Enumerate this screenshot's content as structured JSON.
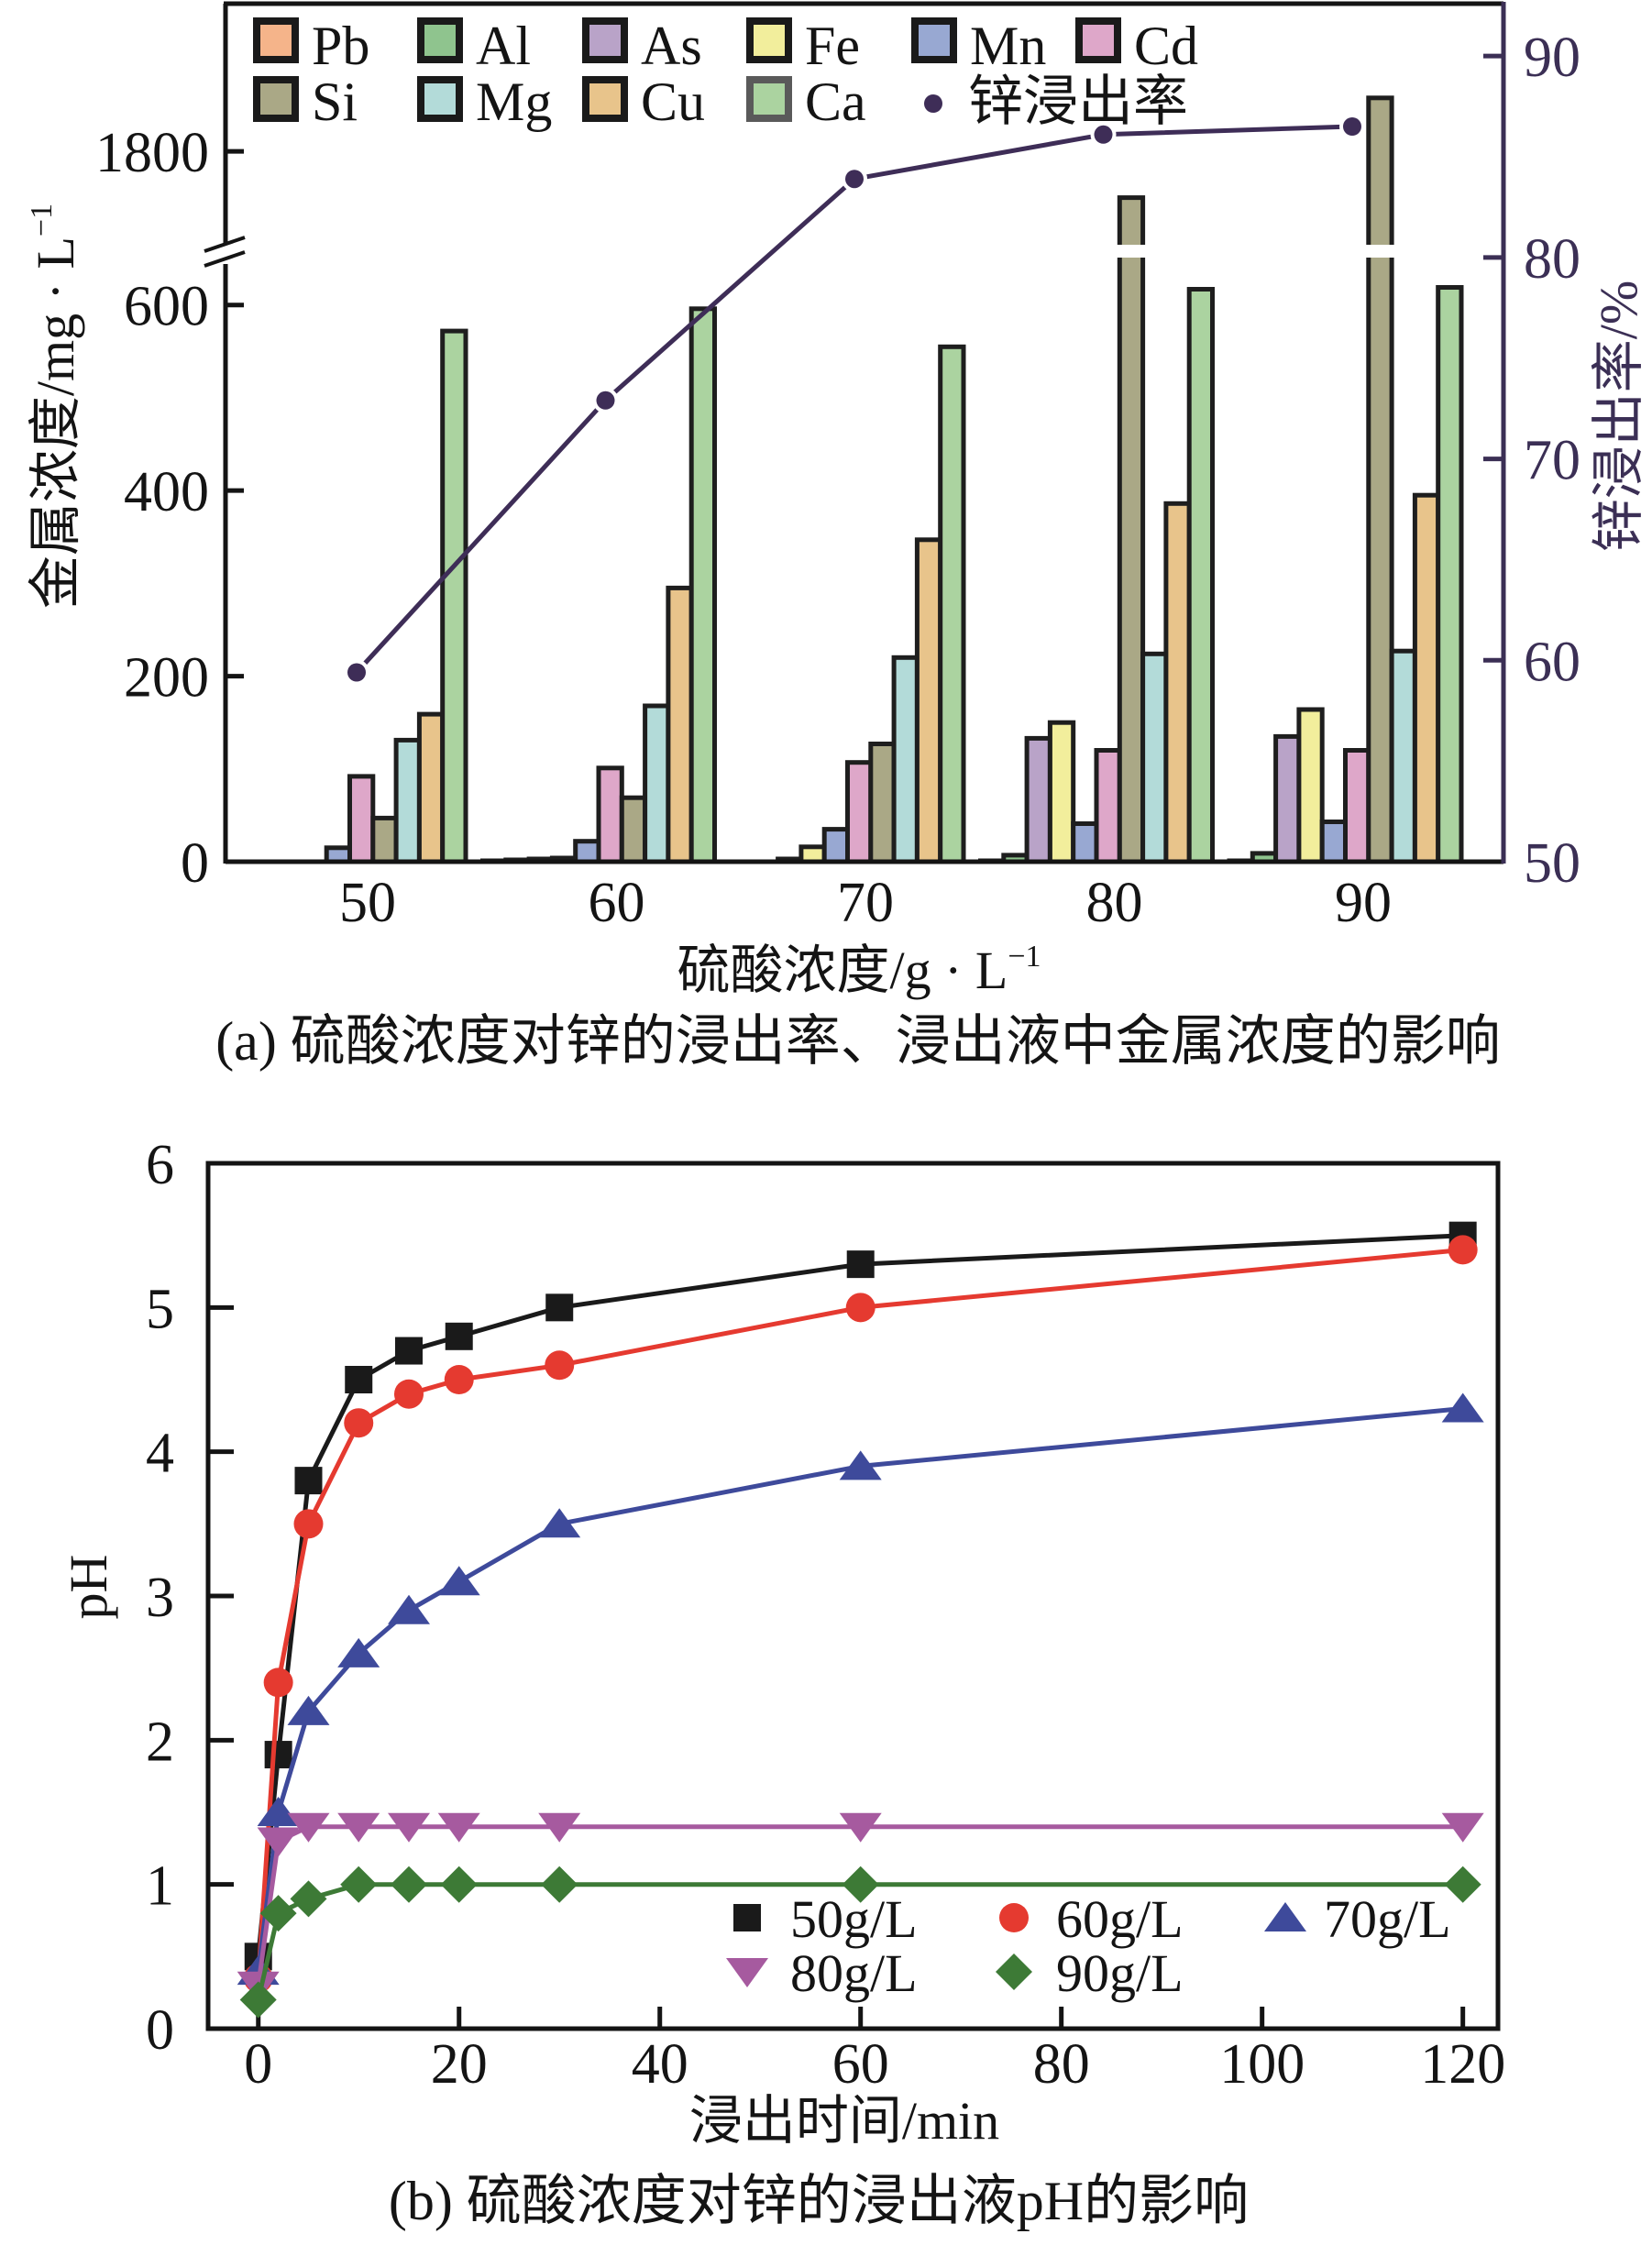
{
  "chart_data": [
    {
      "type": "bar",
      "title": "(a) 硫酸浓度对锌的浸出率、浸出液中金属浓度的影响",
      "xlabel": "硫酸浓度/g · L",
      "xlabel_superscript": "−1",
      "ylabel": "金属浓度/mg · L",
      "ylabel_superscript": "−1",
      "y2label": "锌浸出率/%",
      "categories": [
        "50",
        "60",
        "70",
        "80",
        "90"
      ],
      "ylim": [
        0,
        1960
      ],
      "y_axis_break": [
        660,
        1690
      ],
      "yticks": [
        0,
        200,
        400,
        600,
        1800
      ],
      "y2lim": [
        50,
        92.6
      ],
      "y2ticks": [
        50,
        60,
        70,
        80,
        90
      ],
      "grid": false,
      "legend_position": "top-left",
      "series": [
        {
          "name": "Pb",
          "color": "#f5b48a",
          "values": [
            0,
            1,
            0,
            1,
            1
          ]
        },
        {
          "name": "Al",
          "color": "#8fc48e",
          "values": [
            0,
            2,
            0,
            7,
            9
          ]
        },
        {
          "name": "As",
          "color": "#b9a3c8",
          "values": [
            0,
            3,
            3,
            133,
            135
          ]
        },
        {
          "name": "Fe",
          "color": "#f2ee9c",
          "values": [
            0,
            4,
            16,
            150,
            164
          ]
        },
        {
          "name": "Mn",
          "color": "#98a8d2",
          "values": [
            15,
            22,
            35,
            41,
            43
          ]
        },
        {
          "name": "Cd",
          "color": "#dea7c9",
          "values": [
            92,
            101,
            107,
            120,
            120
          ]
        },
        {
          "name": "Si",
          "color": "#aaa886",
          "values": [
            47,
            69,
            127,
            1750,
            1858
          ]
        },
        {
          "name": "Mg",
          "color": "#b3dbd9",
          "values": [
            131,
            168,
            220,
            224,
            227
          ]
        },
        {
          "name": "Cu",
          "color": "#e8c48b",
          "values": [
            159,
            295,
            347,
            386,
            395
          ]
        },
        {
          "name": "Ca",
          "color": "#abd3a0",
          "values": [
            572,
            596,
            555,
            617,
            619
          ]
        }
      ],
      "line_series": {
        "name": "锌浸出率",
        "axis": "right",
        "color": "#3e2d57",
        "values": [
          59.4,
          72.9,
          83.9,
          86.1,
          86.5
        ]
      }
    },
    {
      "type": "line",
      "title": "(b) 硫酸浓度对锌的浸出液pH的影响",
      "xlabel": "浸出时间/min",
      "ylabel": "pH",
      "x": [
        0,
        2,
        5,
        10,
        15,
        20,
        30,
        60,
        120
      ],
      "xlim": [
        -5,
        123.5
      ],
      "ylim": [
        0,
        6
      ],
      "xticks": [
        0,
        20,
        40,
        60,
        80,
        100,
        120
      ],
      "yticks": [
        0,
        1,
        2,
        3,
        4,
        5,
        6
      ],
      "grid": false,
      "legend_position": "bottom-right",
      "series": [
        {
          "name": "50g/L",
          "marker": "square",
          "color": "#1a1a1a",
          "values": [
            0.5,
            1.9,
            3.8,
            4.5,
            4.7,
            4.8,
            5.0,
            5.3,
            5.5
          ]
        },
        {
          "name": "60g/L",
          "marker": "circle",
          "color": "#e53a30",
          "values": [
            0.35,
            2.4,
            3.5,
            4.2,
            4.4,
            4.5,
            4.6,
            5.0,
            5.4
          ]
        },
        {
          "name": "70g/L",
          "marker": "triangle-up",
          "color": "#3e4a9b",
          "values": [
            0.4,
            1.5,
            2.2,
            2.6,
            2.9,
            3.1,
            3.5,
            3.9,
            4.3
          ]
        },
        {
          "name": "80g/L",
          "marker": "triangle-down",
          "color": "#a65a9f",
          "values": [
            0.3,
            1.3,
            1.4,
            1.4,
            1.4,
            1.4,
            1.4,
            1.4,
            1.4
          ]
        },
        {
          "name": "90g/L",
          "marker": "diamond",
          "color": "#3d7a36",
          "values": [
            0.2,
            0.8,
            0.9,
            1.0,
            1.0,
            1.0,
            1.0,
            1.0,
            1.0
          ]
        }
      ]
    }
  ]
}
